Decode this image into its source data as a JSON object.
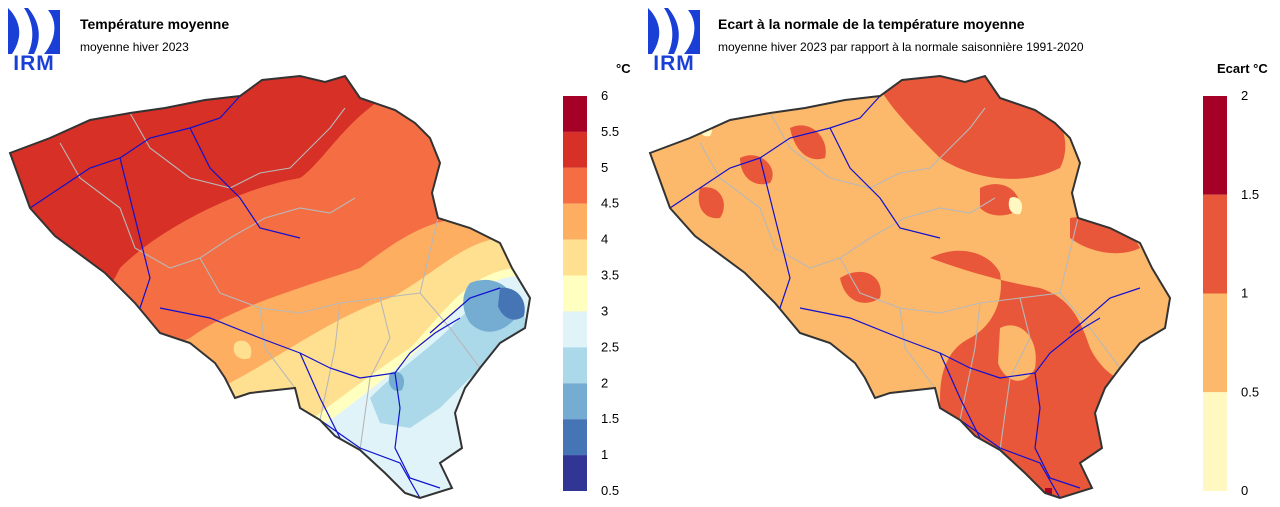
{
  "colors": {
    "logo_blue": "#1a3fd6",
    "border": "#333333",
    "rivers": "#1010d0",
    "provinces": "#b8b8b8"
  },
  "left": {
    "logo_text": "IRM",
    "title": "Température moyenne",
    "subtitle": "moyenne hiver 2023",
    "legend": {
      "unit": "°C",
      "ticks": [
        "6",
        "5.5",
        "5",
        "4.5",
        "4",
        "3.5",
        "3",
        "2.5",
        "2",
        "1.5",
        "1",
        "0.5"
      ],
      "bins": [
        {
          "from": 5.5,
          "to": 6,
          "color": "#a50026"
        },
        {
          "from": 5,
          "to": 5.5,
          "color": "#d73027"
        },
        {
          "from": 4.5,
          "to": 5,
          "color": "#f46d43"
        },
        {
          "from": 4,
          "to": 4.5,
          "color": "#fdae61"
        },
        {
          "from": 3.5,
          "to": 4,
          "color": "#fee090"
        },
        {
          "from": 3,
          "to": 3.5,
          "color": "#ffffbf"
        },
        {
          "from": 2.5,
          "to": 3,
          "color": "#e0f3f8"
        },
        {
          "from": 2,
          "to": 2.5,
          "color": "#abd9e9"
        },
        {
          "from": 1.5,
          "to": 2,
          "color": "#74add1"
        },
        {
          "from": 1,
          "to": 1.5,
          "color": "#4575b4"
        },
        {
          "from": 0.5,
          "to": 1,
          "color": "#313695"
        }
      ]
    }
  },
  "right": {
    "logo_text": "IRM",
    "title": "Ecart à la normale de la température moyenne",
    "subtitle": "moyenne hiver 2023 par rapport à la normale saisonnière 1991-2020",
    "legend": {
      "unit": "Ecart °C",
      "ticks": [
        "2",
        "1.5",
        "1",
        "0.5",
        "0"
      ],
      "bins": [
        {
          "from": 1.5,
          "to": 2,
          "color": "#a50026"
        },
        {
          "from": 1,
          "to": 1.5,
          "color": "#e8573a"
        },
        {
          "from": 0.5,
          "to": 1,
          "color": "#fdb96b"
        },
        {
          "from": 0,
          "to": 0.5,
          "color": "#fff8c0"
        }
      ]
    }
  }
}
